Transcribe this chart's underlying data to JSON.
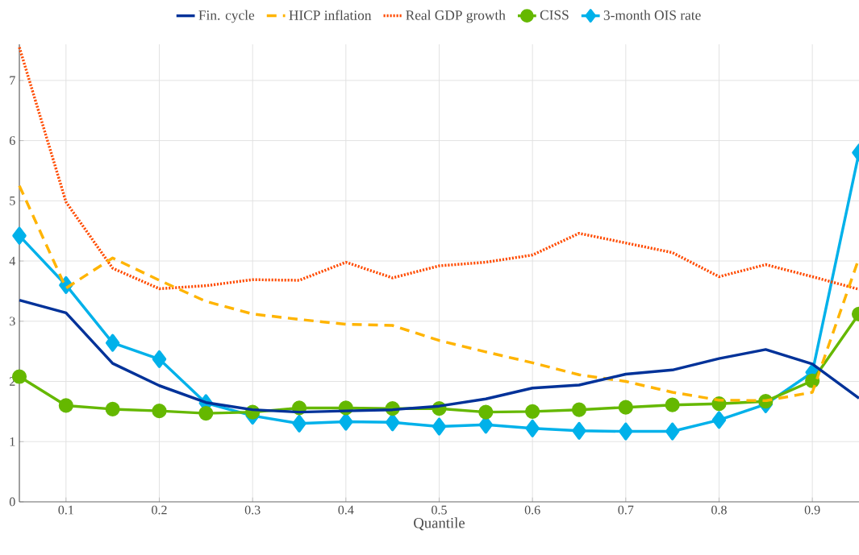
{
  "chart_data": {
    "type": "line",
    "xlabel": "Quantile",
    "x": [
      0.05,
      0.1,
      0.15,
      0.2,
      0.25,
      0.3,
      0.35,
      0.4,
      0.45,
      0.5,
      0.55,
      0.6,
      0.65,
      0.7,
      0.75,
      0.8,
      0.85,
      0.9,
      0.95
    ],
    "series": [
      {
        "name": "Fin. cycle",
        "color": "#003299",
        "line_style": "solid",
        "marker": "none",
        "values": [
          3.35,
          3.14,
          2.3,
          1.93,
          1.65,
          1.53,
          1.49,
          1.51,
          1.53,
          1.59,
          1.71,
          1.89,
          1.94,
          2.12,
          2.19,
          2.38,
          2.53,
          2.29,
          1.72
        ]
      },
      {
        "name": "HICP inflation",
        "color": "#ffb400",
        "line_style": "dashed",
        "marker": "none",
        "values": [
          5.25,
          3.55,
          4.05,
          3.68,
          3.33,
          3.12,
          3.03,
          2.95,
          2.93,
          2.68,
          2.49,
          2.31,
          2.11,
          2.0,
          1.82,
          1.69,
          1.68,
          1.82,
          4.05
        ]
      },
      {
        "name": "Real GDP growth",
        "color": "#ff4b00",
        "line_style": "dotted",
        "marker": "none",
        "values": [
          7.55,
          4.98,
          3.88,
          3.54,
          3.59,
          3.69,
          3.68,
          3.98,
          3.72,
          3.92,
          3.98,
          4.1,
          4.46,
          4.3,
          4.14,
          3.74,
          3.94,
          3.74,
          3.53
        ]
      },
      {
        "name": "CISS",
        "color": "#65b800",
        "line_style": "solid",
        "marker": "circle",
        "values": [
          2.08,
          1.6,
          1.54,
          1.51,
          1.47,
          1.49,
          1.56,
          1.56,
          1.55,
          1.55,
          1.49,
          1.5,
          1.53,
          1.57,
          1.61,
          1.63,
          1.67,
          2.01,
          3.12
        ]
      },
      {
        "name": "3-month OIS rate",
        "color": "#00b1ea",
        "line_style": "solid",
        "marker": "diamond",
        "values": [
          4.42,
          3.6,
          2.64,
          2.37,
          1.64,
          1.43,
          1.3,
          1.33,
          1.32,
          1.25,
          1.28,
          1.22,
          1.18,
          1.17,
          1.17,
          1.36,
          1.62,
          2.15,
          5.8
        ]
      }
    ],
    "xlim": [
      0.05,
      0.95
    ],
    "ylim": [
      0,
      7.6
    ],
    "xticks": [
      0.1,
      0.2,
      0.3,
      0.4,
      0.5,
      0.6,
      0.7,
      0.8,
      0.9
    ],
    "yticks": [
      0,
      1,
      2,
      3,
      4,
      5,
      6,
      7
    ],
    "grid": true,
    "legend": "top"
  }
}
